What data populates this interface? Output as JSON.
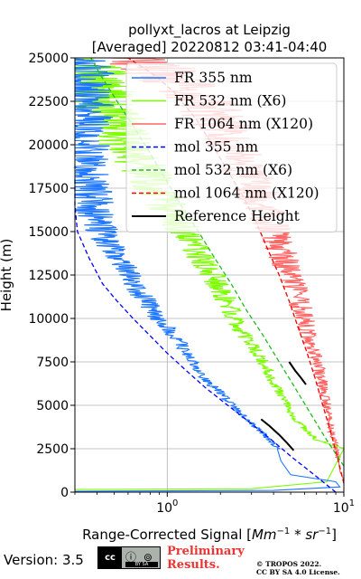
{
  "chart_data": {
    "type": "line",
    "title_line1": "pollyxt_lacros at Leipzig",
    "title_line2": "[Averaged] 20220812 03:41-04:40",
    "xlabel": "Range-Corrected Signal [",
    "xlabel_unit": "Mm",
    "xlabel_exp1": "−1",
    "xlabel_mid": " * sr",
    "xlabel_exp2": "−1",
    "xlabel_end": "]",
    "ylabel": "Height (m)",
    "xscale": "log",
    "xlim": [
      0.3,
      10
    ],
    "ylim": [
      0,
      25000
    ],
    "x_ticks": [
      {
        "value": 1,
        "base": "10",
        "exp": "0"
      },
      {
        "value": 10,
        "base": "10",
        "exp": "1"
      }
    ],
    "y_ticks": [
      0,
      2500,
      5000,
      7500,
      10000,
      12500,
      15000,
      17500,
      20000,
      22500,
      25000
    ],
    "grid": true,
    "legend_position": "top-right",
    "series": [
      {
        "name": "FR 355 nm",
        "style": "solid",
        "color": "#1f77ff",
        "points": [
          [
            0.3,
            50
          ],
          [
            4,
            100
          ],
          [
            9.5,
            300
          ],
          [
            9,
            600
          ],
          [
            5,
            1000
          ],
          [
            4.4,
            1800
          ],
          [
            4.2,
            2500
          ],
          [
            3.4,
            3500
          ],
          [
            2.6,
            4500
          ],
          [
            2.1,
            5500
          ],
          [
            1.65,
            6500
          ],
          [
            1.4,
            7500
          ],
          [
            1.2,
            8500
          ],
          [
            0.98,
            9500
          ],
          [
            0.82,
            10500
          ],
          [
            0.7,
            11500
          ],
          [
            0.6,
            12500
          ],
          [
            0.52,
            13500
          ],
          [
            0.45,
            14500
          ],
          [
            0.4,
            15500
          ],
          [
            0.38,
            16500
          ],
          [
            0.36,
            17500
          ],
          [
            0.34,
            18500
          ],
          [
            0.34,
            19500
          ],
          [
            0.33,
            20500
          ],
          [
            0.33,
            21500
          ],
          [
            0.32,
            22500
          ],
          [
            0.32,
            23500
          ],
          [
            0.32,
            24500
          ],
          [
            0.32,
            25000
          ]
        ]
      },
      {
        "name": "FR 532 nm (X6)",
        "style": "solid",
        "color": "#7cfc00",
        "points": [
          [
            0.3,
            150
          ],
          [
            3,
            200
          ],
          [
            8,
            600
          ],
          [
            10,
            2500
          ],
          [
            7,
            3000
          ],
          [
            5,
            4500
          ],
          [
            4.5,
            5500
          ],
          [
            3.9,
            6500
          ],
          [
            3.5,
            7500
          ],
          [
            3,
            8500
          ],
          [
            2.55,
            9500
          ],
          [
            2.3,
            10500
          ],
          [
            2.05,
            11500
          ],
          [
            1.8,
            12500
          ],
          [
            1.55,
            13500
          ],
          [
            1.35,
            14500
          ],
          [
            1.15,
            15500
          ],
          [
            1.0,
            16500
          ],
          [
            0.85,
            17500
          ],
          [
            0.75,
            18500
          ],
          [
            0.65,
            19500
          ],
          [
            0.55,
            20500
          ],
          [
            0.5,
            21500
          ],
          [
            0.45,
            22500
          ],
          [
            0.4,
            23500
          ],
          [
            0.35,
            24500
          ],
          [
            0.3,
            25000
          ]
        ]
      },
      {
        "name": "FR 1064 nm (X120)",
        "style": "solid",
        "color": "#ff6666",
        "points": [
          [
            10,
            700
          ],
          [
            9.5,
            1200
          ],
          [
            9.3,
            2000
          ],
          [
            8.5,
            3500
          ],
          [
            8,
            5000
          ],
          [
            7.5,
            6500
          ],
          [
            6.5,
            8500
          ],
          [
            5.8,
            10500
          ],
          [
            5,
            12500
          ],
          [
            4.2,
            14500
          ],
          [
            3.5,
            16500
          ],
          [
            2.8,
            18500
          ],
          [
            2.2,
            20500
          ],
          [
            1.6,
            22500
          ],
          [
            1.0,
            24000
          ],
          [
            0.7,
            25000
          ]
        ]
      },
      {
        "name": "mol 355 nm",
        "style": "dashed",
        "color": "#0000ff",
        "points": [
          [
            9,
            0
          ],
          [
            6.8,
            1000
          ],
          [
            5.1,
            2000
          ],
          [
            3.9,
            3000
          ],
          [
            2.95,
            4000
          ],
          [
            2.2,
            5000
          ],
          [
            1.65,
            6000
          ],
          [
            1.28,
            7000
          ],
          [
            1.0,
            8000
          ],
          [
            0.8,
            9000
          ],
          [
            0.64,
            10000
          ],
          [
            0.52,
            11000
          ],
          [
            0.43,
            12000
          ],
          [
            0.36,
            13500
          ],
          [
            0.31,
            15000
          ],
          [
            0.28,
            16500
          ],
          [
            0.26,
            18000
          ]
        ]
      },
      {
        "name": "mol 532 nm (X6)",
        "style": "dashed",
        "color": "#22bb22",
        "points": [
          [
            10,
            1500
          ],
          [
            8,
            3000
          ],
          [
            6.5,
            4500
          ],
          [
            5.3,
            6000
          ],
          [
            4.3,
            7500
          ],
          [
            3.5,
            9000
          ],
          [
            2.8,
            10500
          ],
          [
            2.3,
            12000
          ],
          [
            1.85,
            13500
          ],
          [
            1.5,
            15000
          ],
          [
            1.2,
            16500
          ],
          [
            0.98,
            18000
          ],
          [
            0.8,
            19500
          ],
          [
            0.65,
            21000
          ],
          [
            0.52,
            22500
          ],
          [
            0.42,
            24000
          ],
          [
            0.37,
            25000
          ]
        ]
      },
      {
        "name": "mol 1064 nm (X120)",
        "style": "dashed",
        "color": "#ee0000",
        "points": [
          [
            10,
            500
          ],
          [
            9.2,
            2000
          ],
          [
            8.4,
            3500
          ],
          [
            7.6,
            5000
          ],
          [
            6.9,
            6500
          ],
          [
            6.2,
            8000
          ],
          [
            5.5,
            9500
          ],
          [
            4.9,
            11000
          ],
          [
            4.3,
            12500
          ],
          [
            3.7,
            14000
          ],
          [
            3.2,
            15500
          ],
          [
            2.7,
            17000
          ],
          [
            2.2,
            18500
          ],
          [
            1.8,
            20000
          ],
          [
            1.45,
            21500
          ],
          [
            1.1,
            23000
          ],
          [
            0.85,
            24000
          ],
          [
            0.6,
            25000
          ]
        ]
      },
      {
        "name": "Reference Height",
        "style": "solid",
        "color": "#000000",
        "segments": [
          [
            [
              3.4,
              4200
            ],
            [
              3.8,
              3800
            ],
            [
              4.3,
              3300
            ],
            [
              4.8,
              2800
            ],
            [
              5.2,
              2400
            ]
          ],
          [
            [
              4.9,
              7500
            ],
            [
              5.3,
              7000
            ],
            [
              5.7,
              6600
            ],
            [
              6.1,
              6200
            ]
          ]
        ]
      }
    ]
  },
  "footer": {
    "version": "Version: 3.5",
    "cc_left": "cc",
    "cc_icons": "ⓘ ⊚",
    "cc_sub": "BY  SA",
    "prelim_line1": "Preliminary",
    "prelim_line2": "Results.",
    "copyright_line1": "© TROPOS 2022.",
    "copyright_line2": "CC BY SA 4.0 License."
  }
}
